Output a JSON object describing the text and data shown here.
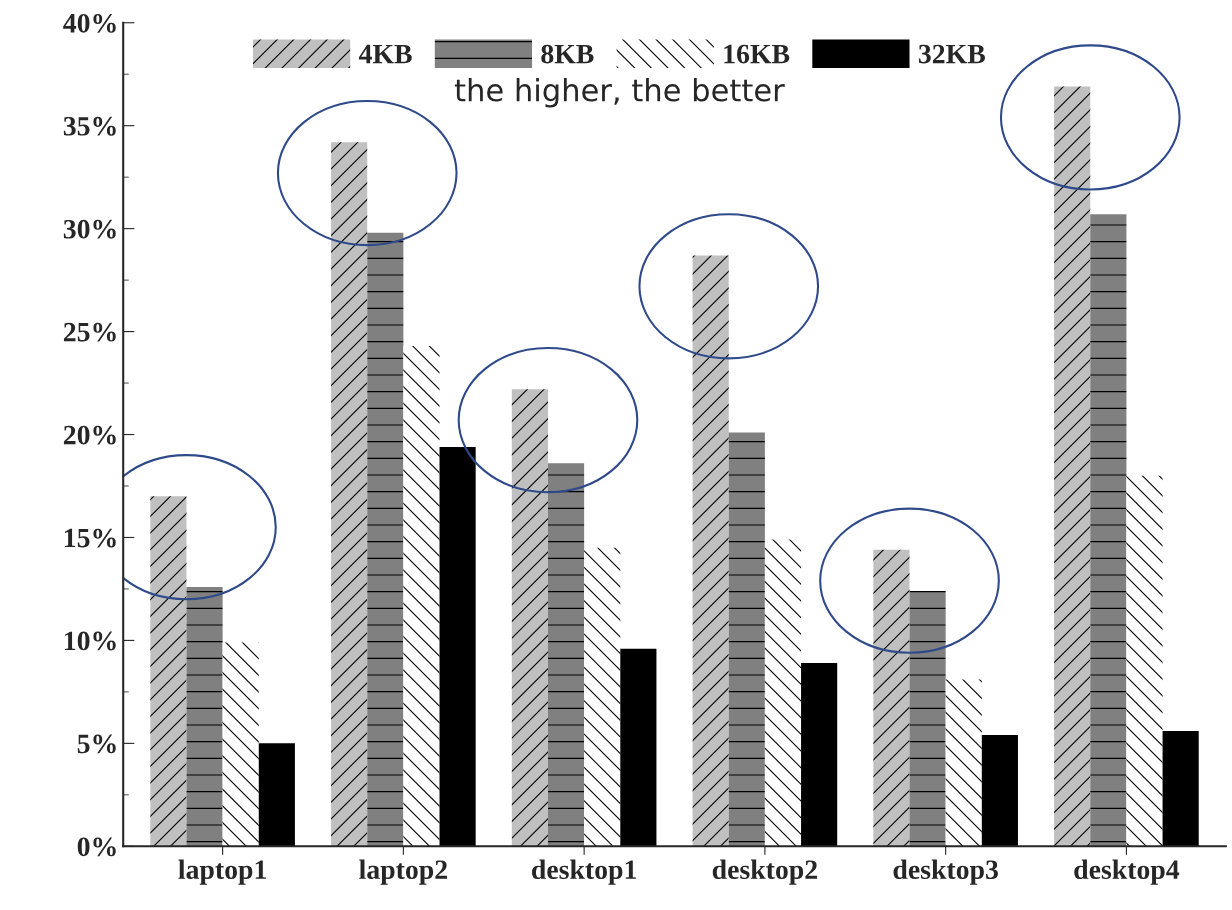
{
  "chart_data": {
    "type": "bar",
    "categories": [
      "laptop1",
      "laptop2",
      "desktop1",
      "desktop2",
      "desktop3",
      "desktop4"
    ],
    "series": [
      {
        "name": "4KB",
        "color": "#c0c0c0",
        "values": [
          17.0,
          34.2,
          22.2,
          28.7,
          14.4,
          36.9
        ]
      },
      {
        "name": "8KB",
        "color": "#808080",
        "values": [
          12.6,
          29.8,
          18.6,
          20.1,
          12.4,
          30.7
        ]
      },
      {
        "name": "16KB",
        "color": "#ffffff",
        "values": [
          9.9,
          24.3,
          14.5,
          14.9,
          8.1,
          18.0
        ]
      },
      {
        "name": "32KB",
        "color": "#000000",
        "values": [
          5.0,
          19.4,
          9.6,
          8.9,
          5.4,
          5.6
        ]
      }
    ],
    "ylim": [
      0,
      40
    ],
    "yticks": [
      {
        "value": 0,
        "label": "0%"
      },
      {
        "value": 5,
        "label": "5%"
      },
      {
        "value": 10,
        "label": "10%"
      },
      {
        "value": 15,
        "label": "15%"
      },
      {
        "value": 20,
        "label": "20%"
      },
      {
        "value": 25,
        "label": "25%"
      },
      {
        "value": 30,
        "label": "30%"
      },
      {
        "value": 35,
        "label": "35%"
      },
      {
        "value": 40,
        "label": "40%"
      }
    ],
    "annotations": [
      "the higher, the better"
    ],
    "legend": "top",
    "grid": false
  }
}
